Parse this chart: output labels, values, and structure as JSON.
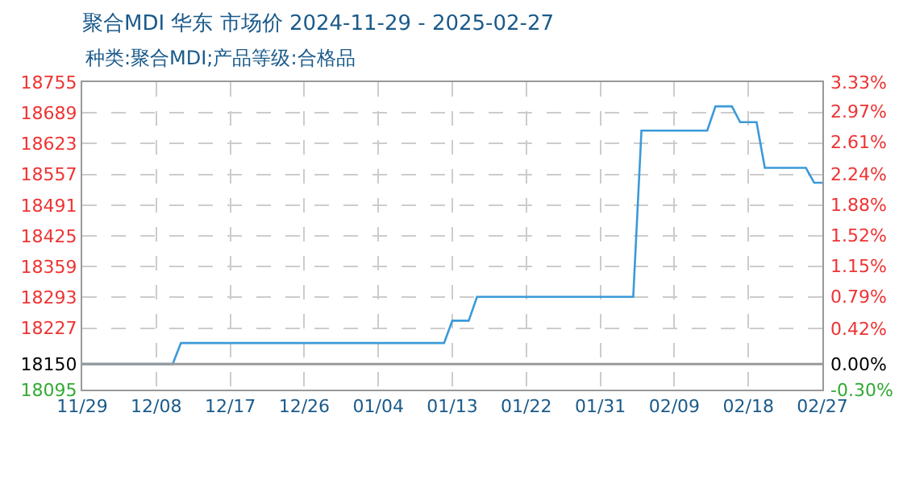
{
  "chart_data": {
    "type": "line",
    "title": "聚合MDI 华东 市场价 2024-11-29 - 2025-02-27",
    "subtitle": "种类:聚合MDI;产品等级:合格品",
    "x": [
      "2024-11-29",
      "2024-12-10",
      "2024-12-11",
      "2025-01-12",
      "2025-01-13",
      "2025-01-15",
      "2025-01-16",
      "2025-02-04",
      "2025-02-05",
      "2025-02-13",
      "2025-02-14",
      "2025-02-16",
      "2025-02-17",
      "2025-02-19",
      "2025-02-20",
      "2025-02-25",
      "2025-02-26",
      "2025-02-27"
    ],
    "series": [
      {
        "color": "#3b9ad9",
        "values": [
          18150,
          18150,
          18195,
          18195,
          18243,
          18243,
          18294,
          18294,
          18651,
          18651,
          18703,
          18703,
          18669,
          18669,
          18571,
          18571,
          18539,
          18539
        ]
      }
    ],
    "xlim": [
      "2024-11-29",
      "2025-02-27"
    ],
    "xticks": [
      {
        "value": "2024-11-29",
        "label": "11/29"
      },
      {
        "value": "2024-12-08",
        "label": "12/08"
      },
      {
        "value": "2024-12-17",
        "label": "12/17"
      },
      {
        "value": "2024-12-26",
        "label": "12/26"
      },
      {
        "value": "2025-01-04",
        "label": "01/04"
      },
      {
        "value": "2025-01-13",
        "label": "01/13"
      },
      {
        "value": "2025-01-22",
        "label": "01/22"
      },
      {
        "value": "2025-01-31",
        "label": "01/31"
      },
      {
        "value": "2025-02-09",
        "label": "02/09"
      },
      {
        "value": "2025-02-18",
        "label": "02/18"
      },
      {
        "value": "2025-02-27",
        "label": "02/27"
      }
    ],
    "ylim": [
      18095,
      18755
    ],
    "yticks": [
      18095,
      18150,
      18227,
      18293,
      18359,
      18425,
      18491,
      18557,
      18623,
      18689,
      18755
    ],
    "y2lim": [
      -0.3,
      3.33
    ],
    "y2ticks": [
      {
        "value": -0.3,
        "label": "-0.30%"
      },
      {
        "value": 0,
        "label": "0.00%"
      },
      {
        "value": 0.42,
        "label": "0.42%"
      },
      {
        "value": 0.79,
        "label": "0.79%"
      },
      {
        "value": 1.15,
        "label": "1.15%"
      },
      {
        "value": 1.52,
        "label": "1.52%"
      },
      {
        "value": 1.88,
        "label": "1.88%"
      },
      {
        "value": 2.24,
        "label": "2.24%"
      },
      {
        "value": 2.61,
        "label": "2.61%"
      },
      {
        "value": 2.97,
        "label": "2.97%"
      },
      {
        "value": 3.33,
        "label": "3.33%"
      }
    ],
    "ref_lines": [
      {
        "axis": "y",
        "value": 18150,
        "color": "#999999",
        "line_style": "solid"
      }
    ],
    "grid": true,
    "marker": "none",
    "line_style": "solid"
  }
}
